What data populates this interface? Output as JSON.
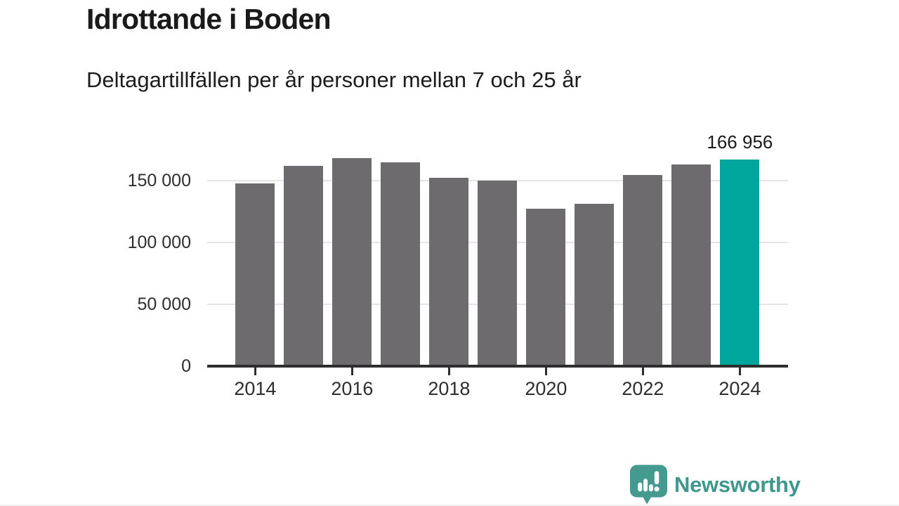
{
  "chart_data": {
    "type": "bar",
    "title": "Idrottande i Boden",
    "subtitle": "Deltagartillfällen per år personer mellan 7 och 25 år",
    "categories": [
      "2014",
      "2015",
      "2016",
      "2017",
      "2018",
      "2019",
      "2020",
      "2021",
      "2022",
      "2023",
      "2024"
    ],
    "values": [
      148000,
      161900,
      167900,
      164500,
      152000,
      149800,
      127400,
      131200,
      154300,
      162800,
      166956
    ],
    "highlight_index": 10,
    "annotation": {
      "text": "166 956",
      "index": 10
    },
    "ylim": [
      0,
      175000
    ],
    "yticks": [
      {
        "value": 0,
        "label": "0"
      },
      {
        "value": 50000,
        "label": "50 000"
      },
      {
        "value": 100000,
        "label": "100 000"
      },
      {
        "value": 150000,
        "label": "150 000"
      }
    ],
    "xtick_years": [
      "2014",
      "2016",
      "2018",
      "2020",
      "2022",
      "2024"
    ],
    "grid": "horizontal",
    "legend": "none",
    "colors": {
      "bar": "#6e6b6e",
      "highlight": "#00a69b",
      "gridline": "#e4e4e4",
      "axis": "#2e2e2e",
      "text": "#1a1a1a"
    }
  },
  "footer": {
    "brand": "Newsworthy",
    "logo_icon": "speech-bubble-bar-chart-icon",
    "brand_color": "#3f978d",
    "icon_color": "#459a90"
  }
}
